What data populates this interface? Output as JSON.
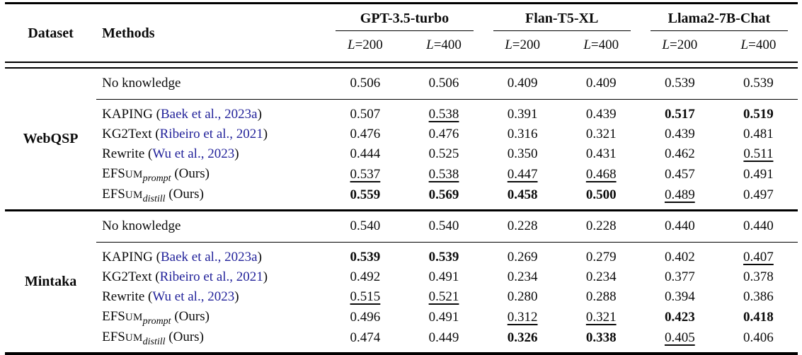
{
  "colors": {
    "citation": "#22229a",
    "text": "#0b0b0b",
    "rule": "#000000"
  },
  "header": {
    "dataset_label": "Dataset",
    "methods_label": "Methods",
    "groups": [
      {
        "label": "GPT-3.5-turbo",
        "sub": [
          {
            "var": "L",
            "num": "=200"
          },
          {
            "var": "L",
            "num": "=400"
          }
        ]
      },
      {
        "label": "Flan-T5-XL",
        "sub": [
          {
            "var": "L",
            "num": "=200"
          },
          {
            "var": "L",
            "num": "=400"
          }
        ]
      },
      {
        "label": "Llama2-7B-Chat",
        "sub": [
          {
            "var": "L",
            "num": "=200"
          },
          {
            "var": "L",
            "num": "=400"
          }
        ]
      }
    ]
  },
  "sections": [
    {
      "dataset": "WebQSP",
      "rows": [
        {
          "kind": "baseline",
          "method": {
            "type": "plain",
            "text": "No knowledge"
          },
          "cells": [
            {
              "v": "0.506",
              "f": "p"
            },
            {
              "v": "0.506",
              "f": "p"
            },
            {
              "v": "0.409",
              "f": "p"
            },
            {
              "v": "0.409",
              "f": "p"
            },
            {
              "v": "0.539",
              "f": "p"
            },
            {
              "v": "0.539",
              "f": "p"
            }
          ]
        },
        {
          "kind": "method",
          "method": {
            "type": "cite",
            "pre": "KAPING (",
            "cite": "Baek et al., 2023a",
            "post": ")"
          },
          "cells": [
            {
              "v": "0.507",
              "f": "p"
            },
            {
              "v": "0.538",
              "f": "u"
            },
            {
              "v": "0.391",
              "f": "p"
            },
            {
              "v": "0.439",
              "f": "p"
            },
            {
              "v": "0.517",
              "f": "b"
            },
            {
              "v": "0.519",
              "f": "b"
            }
          ]
        },
        {
          "kind": "method",
          "method": {
            "type": "cite",
            "pre": "KG2Text (",
            "cite": "Ribeiro et al., 2021",
            "post": ")"
          },
          "cells": [
            {
              "v": "0.476",
              "f": "p"
            },
            {
              "v": "0.476",
              "f": "p"
            },
            {
              "v": "0.316",
              "f": "p"
            },
            {
              "v": "0.321",
              "f": "p"
            },
            {
              "v": "0.439",
              "f": "p"
            },
            {
              "v": "0.481",
              "f": "p"
            }
          ]
        },
        {
          "kind": "method",
          "method": {
            "type": "cite",
            "pre": "Rewrite (",
            "cite": "Wu et al., 2023",
            "post": ")"
          },
          "cells": [
            {
              "v": "0.444",
              "f": "p"
            },
            {
              "v": "0.525",
              "f": "p"
            },
            {
              "v": "0.350",
              "f": "p"
            },
            {
              "v": "0.431",
              "f": "p"
            },
            {
              "v": "0.462",
              "f": "p"
            },
            {
              "v": "0.511",
              "f": "u"
            }
          ]
        },
        {
          "kind": "method",
          "method": {
            "type": "efsum",
            "base": "EFS",
            "sc": "UM",
            "sub": "prompt",
            "post": " (Ours)"
          },
          "cells": [
            {
              "v": "0.537",
              "f": "u"
            },
            {
              "v": "0.538",
              "f": "u"
            },
            {
              "v": "0.447",
              "f": "u"
            },
            {
              "v": "0.468",
              "f": "u"
            },
            {
              "v": "0.457",
              "f": "p"
            },
            {
              "v": "0.491",
              "f": "p"
            }
          ]
        },
        {
          "kind": "method",
          "method": {
            "type": "efsum",
            "base": "EFS",
            "sc": "UM",
            "sub": "distill",
            "post": " (Ours)"
          },
          "cells": [
            {
              "v": "0.559",
              "f": "b"
            },
            {
              "v": "0.569",
              "f": "b"
            },
            {
              "v": "0.458",
              "f": "b"
            },
            {
              "v": "0.500",
              "f": "b"
            },
            {
              "v": "0.489",
              "f": "u"
            },
            {
              "v": "0.497",
              "f": "p"
            }
          ]
        }
      ]
    },
    {
      "dataset": "Mintaka",
      "rows": [
        {
          "kind": "baseline",
          "method": {
            "type": "plain",
            "text": "No knowledge"
          },
          "cells": [
            {
              "v": "0.540",
              "f": "p"
            },
            {
              "v": "0.540",
              "f": "p"
            },
            {
              "v": "0.228",
              "f": "p"
            },
            {
              "v": "0.228",
              "f": "p"
            },
            {
              "v": "0.440",
              "f": "p"
            },
            {
              "v": "0.440",
              "f": "p"
            }
          ]
        },
        {
          "kind": "method",
          "method": {
            "type": "cite",
            "pre": "KAPING (",
            "cite": "Baek et al., 2023a",
            "post": ")"
          },
          "cells": [
            {
              "v": "0.539",
              "f": "b"
            },
            {
              "v": "0.539",
              "f": "b"
            },
            {
              "v": "0.269",
              "f": "p"
            },
            {
              "v": "0.279",
              "f": "p"
            },
            {
              "v": "0.402",
              "f": "p"
            },
            {
              "v": "0.407",
              "f": "u"
            }
          ]
        },
        {
          "kind": "method",
          "method": {
            "type": "cite",
            "pre": "KG2Text (",
            "cite": "Ribeiro et al., 2021",
            "post": ")"
          },
          "cells": [
            {
              "v": "0.492",
              "f": "p"
            },
            {
              "v": "0.491",
              "f": "p"
            },
            {
              "v": "0.234",
              "f": "p"
            },
            {
              "v": "0.234",
              "f": "p"
            },
            {
              "v": "0.377",
              "f": "p"
            },
            {
              "v": "0.378",
              "f": "p"
            }
          ]
        },
        {
          "kind": "method",
          "method": {
            "type": "cite",
            "pre": "Rewrite (",
            "cite": "Wu et al., 2023",
            "post": ")"
          },
          "cells": [
            {
              "v": "0.515",
              "f": "u"
            },
            {
              "v": "0.521",
              "f": "u"
            },
            {
              "v": "0.280",
              "f": "p"
            },
            {
              "v": "0.288",
              "f": "p"
            },
            {
              "v": "0.394",
              "f": "p"
            },
            {
              "v": "0.386",
              "f": "p"
            }
          ]
        },
        {
          "kind": "method",
          "method": {
            "type": "efsum",
            "base": "EFS",
            "sc": "UM",
            "sub": "prompt",
            "post": " (Ours)"
          },
          "cells": [
            {
              "v": "0.496",
              "f": "p"
            },
            {
              "v": "0.491",
              "f": "p"
            },
            {
              "v": "0.312",
              "f": "u"
            },
            {
              "v": "0.321",
              "f": "u"
            },
            {
              "v": "0.423",
              "f": "b"
            },
            {
              "v": "0.418",
              "f": "b"
            }
          ]
        },
        {
          "kind": "method",
          "method": {
            "type": "efsum",
            "base": "EFS",
            "sc": "UM",
            "sub": "distill",
            "post": " (Ours)"
          },
          "cells": [
            {
              "v": "0.474",
              "f": "p"
            },
            {
              "v": "0.449",
              "f": "p"
            },
            {
              "v": "0.326",
              "f": "b"
            },
            {
              "v": "0.338",
              "f": "b"
            },
            {
              "v": "0.405",
              "f": "u"
            },
            {
              "v": "0.406",
              "f": "p"
            }
          ]
        }
      ]
    }
  ]
}
